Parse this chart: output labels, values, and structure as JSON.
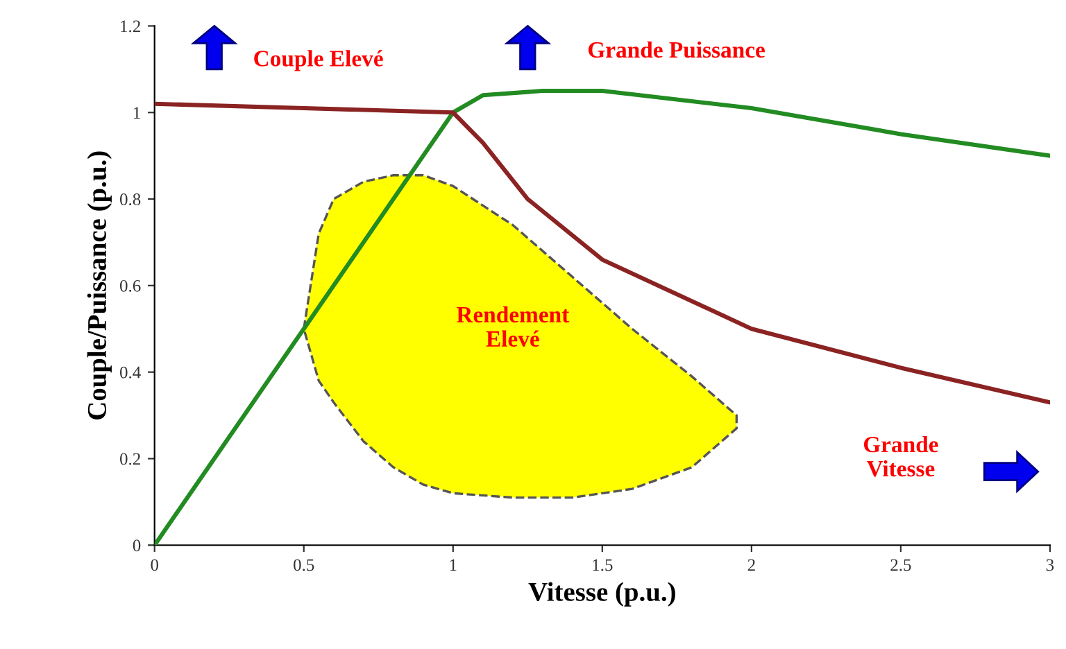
{
  "chart_data": {
    "type": "line",
    "xlabel": "Vitesse (p.u.)",
    "ylabel": "Couple/Puissance (p.u.)",
    "xlim": [
      0,
      3
    ],
    "xticks": [
      0,
      0.5,
      1,
      1.5,
      2,
      2.5,
      3
    ],
    "ylim": [
      0,
      1.2
    ],
    "yticks": [
      0,
      0.2,
      0.4,
      0.6,
      0.8,
      1,
      1.2
    ],
    "grid": false,
    "legend": false,
    "marker": "none",
    "line_style": "solid",
    "series": [
      {
        "type": "area",
        "color": "#ffff00",
        "x": [
          0.5,
          0.55,
          0.6,
          0.7,
          0.8,
          0.9,
          1.0,
          1.2,
          1.4,
          1.6,
          1.8,
          1.95,
          1.95,
          1.8,
          1.6,
          1.4,
          1.2,
          1.0,
          0.9,
          0.8,
          0.7,
          0.6,
          0.55
        ],
        "values": [
          0.5,
          0.72,
          0.8,
          0.84,
          0.855,
          0.855,
          0.83,
          0.74,
          0.62,
          0.5,
          0.39,
          0.3,
          0.27,
          0.18,
          0.13,
          0.11,
          0.11,
          0.12,
          0.14,
          0.18,
          0.24,
          0.33,
          0.38
        ]
      },
      {
        "color": "#228b22",
        "x": [
          0,
          1,
          1.1,
          1.3,
          1.5,
          2,
          2.5,
          3
        ],
        "values": [
          0,
          1,
          1.04,
          1.05,
          1.05,
          1.01,
          0.95,
          0.9
        ]
      },
      {
        "color": "#8b2323",
        "x": [
          0,
          0.5,
          1,
          1.1,
          1.25,
          1.5,
          2,
          2.5,
          3
        ],
        "values": [
          1.02,
          1.01,
          1.0,
          0.93,
          0.8,
          0.66,
          0.5,
          0.41,
          0.33
        ]
      }
    ],
    "annotations": [
      "Couple Elevé",
      "Grande Puissance",
      "Rendement\nElevé",
      "Grande\nVitesse"
    ]
  }
}
